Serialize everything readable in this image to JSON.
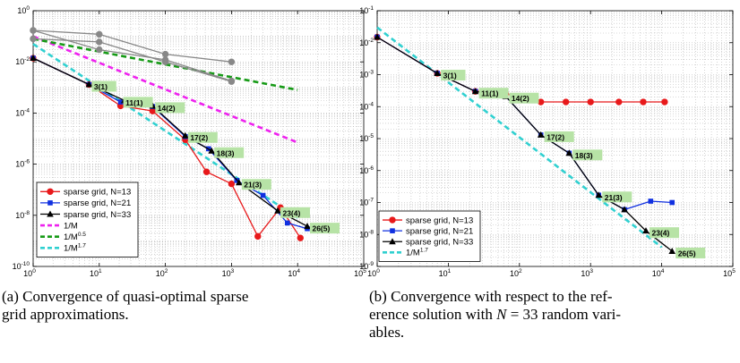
{
  "chart_data": [
    {
      "type": "line",
      "panel": "a",
      "xscale": "log",
      "yscale": "log",
      "xlim": [
        1,
        100000
      ],
      "ylim": [
        1e-10,
        1
      ],
      "x_ticks": [
        1,
        10,
        100,
        1000,
        10000,
        100000
      ],
      "y_ticks": [
        1e-10,
        1e-08,
        1e-06,
        0.0001,
        0.01,
        1
      ],
      "x_tick_labels": [
        "10^0",
        "10^1",
        "10^2",
        "10^3",
        "10^4",
        "10^5"
      ],
      "y_tick_labels": [
        "10^-10",
        "10^-8",
        "10^-6",
        "10^-4",
        "10^-2",
        "10^0"
      ],
      "grid": true,
      "legend_position": "bottom-left",
      "series": [
        {
          "name": "sparse grid, N=13",
          "color": "#e8191b",
          "marker": "circle",
          "x": [
            1,
            7,
            21,
            64,
            200,
            420,
            1000,
            2500,
            5500,
            11000
          ],
          "y": [
            0.014,
            0.0013,
            0.00019,
            0.00012,
            9e-06,
            5e-07,
            1.7e-07,
            1.5e-09,
            2e-08,
            1.3e-09
          ]
        },
        {
          "name": "sparse grid, N=21",
          "color": "#1030e0",
          "marker": "square",
          "x": [
            1,
            7,
            21,
            64,
            200,
            450,
            1200,
            3000,
            7000,
            14000
          ],
          "y": [
            0.014,
            0.0013,
            0.00027,
            0.00018,
            1.2e-05,
            4e-06,
            2.3e-07,
            6e-08,
            5e-09,
            3e-09
          ]
        },
        {
          "name": "sparse grid, N=33",
          "color": "#000000",
          "marker": "triangle",
          "x": [
            1,
            7,
            24,
            64,
            200,
            500,
            1300,
            5000,
            14000
          ],
          "y": [
            0.014,
            0.0013,
            0.00031,
            0.00019,
            1.3e-05,
            3.3e-06,
            1.9e-07,
            1.5e-08,
            3.7e-09
          ]
        },
        {
          "name": "1/M",
          "color": "#ee22ee",
          "dash": "dash",
          "x": [
            1,
            10000
          ],
          "y": [
            0.1,
            7e-06
          ]
        },
        {
          "name": "1/M^0.5",
          "color": "#169a16",
          "dash": "dash",
          "x": [
            1,
            10000
          ],
          "y": [
            0.08,
            0.0008
          ]
        },
        {
          "name": "1/M^1.7",
          "color": "#30d0d0",
          "dash": "dash",
          "x": [
            1,
            10000
          ],
          "y": [
            0.05,
            8e-09
          ]
        },
        {
          "name": "",
          "color": "#888888",
          "marker": "circle",
          "x": [
            1,
            10,
            100,
            1000
          ],
          "y": [
            0.17,
            0.12,
            0.02,
            0.01
          ]
        },
        {
          "name": "",
          "color": "#888888",
          "marker": "circle",
          "x": [
            1,
            10,
            100,
            1000
          ],
          "y": [
            0.17,
            0.03,
            0.012,
            0.0018
          ]
        },
        {
          "name": "",
          "color": "#888888",
          "marker": "circle",
          "x": [
            1,
            10,
            100,
            1000
          ],
          "y": [
            0.08,
            0.06,
            0.01,
            0.0017
          ]
        }
      ],
      "annotations": [
        {
          "text": "3(1)",
          "x": 7,
          "y": 0.0013
        },
        {
          "text": "11(1)",
          "x": 21,
          "y": 0.00031
        },
        {
          "text": "14(2)",
          "x": 64,
          "y": 0.00019
        },
        {
          "text": "17(2)",
          "x": 200,
          "y": 1.3e-05
        },
        {
          "text": "18(3)",
          "x": 500,
          "y": 3.3e-06
        },
        {
          "text": "21(3)",
          "x": 1300,
          "y": 1.9e-07
        },
        {
          "text": "23(4)",
          "x": 5000,
          "y": 1.5e-08
        },
        {
          "text": "26(5)",
          "x": 14000,
          "y": 3.7e-09
        }
      ],
      "legend_labels": [
        {
          "text": "sparse grid, N=13",
          "sup": ""
        },
        {
          "text": "sparse grid, N=21",
          "sup": ""
        },
        {
          "text": "sparse grid, N=33",
          "sup": ""
        },
        {
          "text": "1/M",
          "sup": ""
        },
        {
          "text": "1/M",
          "sup": "0.5"
        },
        {
          "text": "1/M",
          "sup": "1.7"
        }
      ]
    },
    {
      "type": "line",
      "panel": "b",
      "xscale": "log",
      "yscale": "log",
      "xlim": [
        1,
        100000
      ],
      "ylim": [
        1e-09,
        0.1
      ],
      "x_ticks": [
        1,
        10,
        100,
        1000,
        10000,
        100000
      ],
      "y_ticks": [
        1e-09,
        1e-08,
        1e-07,
        1e-06,
        1e-05,
        0.0001,
        0.001,
        0.01,
        0.1
      ],
      "x_tick_labels": [
        "10^0",
        "10^1",
        "10^2",
        "10^3",
        "10^4",
        "10^5"
      ],
      "y_tick_labels": [
        "10^-9",
        "10^-8",
        "10^-7",
        "10^-6",
        "10^-5",
        "10^-4",
        "10^-3",
        "10^-2",
        "10^-1"
      ],
      "grid": true,
      "legend_position": "bottom-left",
      "series": [
        {
          "name": "sparse grid, N=13",
          "color": "#e8191b",
          "marker": "circle",
          "x": [
            1,
            7,
            24,
            64,
            200,
            450,
            1000,
            2500,
            5500,
            11000
          ],
          "y": [
            0.015,
            0.0011,
            0.0003,
            0.00025,
            0.00014,
            0.00014,
            0.00014,
            0.00014,
            0.00014,
            0.00014
          ]
        },
        {
          "name": "sparse grid, N=21",
          "color": "#1030e0",
          "marker": "square",
          "x": [
            1,
            7,
            24,
            64,
            200,
            500,
            1300,
            3000,
            7000,
            14000
          ],
          "y": [
            0.015,
            0.0011,
            0.0003,
            0.00021,
            1.3e-05,
            3.5e-06,
            1.7e-07,
            6e-08,
            1.1e-07,
            1e-07
          ]
        },
        {
          "name": "sparse grid, N=33",
          "color": "#000000",
          "marker": "triangle",
          "x": [
            1,
            7,
            24,
            64,
            200,
            500,
            1300,
            3000,
            6000,
            14000
          ],
          "y": [
            0.015,
            0.0011,
            0.0003,
            0.00021,
            1.3e-05,
            3.5e-06,
            1.7e-07,
            6e-08,
            1.3e-08,
            3e-09
          ]
        },
        {
          "name": "1/M^1.7",
          "color": "#30d0d0",
          "dash": "dash",
          "x": [
            1,
            10000
          ],
          "y": [
            0.03,
            4e-09
          ]
        }
      ],
      "annotations": [
        {
          "text": "3(1)",
          "x": 7,
          "y": 0.0011
        },
        {
          "text": "11(1)",
          "x": 24,
          "y": 0.0003
        },
        {
          "text": "14(2)",
          "x": 64,
          "y": 0.00021
        },
        {
          "text": "17(2)",
          "x": 200,
          "y": 1.3e-05
        },
        {
          "text": "18(3)",
          "x": 500,
          "y": 3.5e-06
        },
        {
          "text": "21(3)",
          "x": 1300,
          "y": 1.7e-07
        },
        {
          "text": "23(4)",
          "x": 6000,
          "y": 1.3e-08
        },
        {
          "text": "26(5)",
          "x": 14000,
          "y": 3e-09
        }
      ],
      "legend_labels": [
        {
          "text": "sparse grid, N=13",
          "sup": ""
        },
        {
          "text": "sparse grid, N=21",
          "sup": ""
        },
        {
          "text": "sparse grid, N=33",
          "sup": ""
        },
        {
          "text": "1/M",
          "sup": "1.7"
        }
      ]
    }
  ],
  "captions": {
    "a": {
      "line1": "(a) Convergence of quasi-optimal sparse",
      "line2": "grid approximations."
    },
    "b": {
      "line1": "(b) Convergence with respect to the ref-",
      "line2_pre": "erence solution with ",
      "line2_var": "N",
      "line2_post": " = 33 random vari-",
      "line3": "ables."
    }
  }
}
